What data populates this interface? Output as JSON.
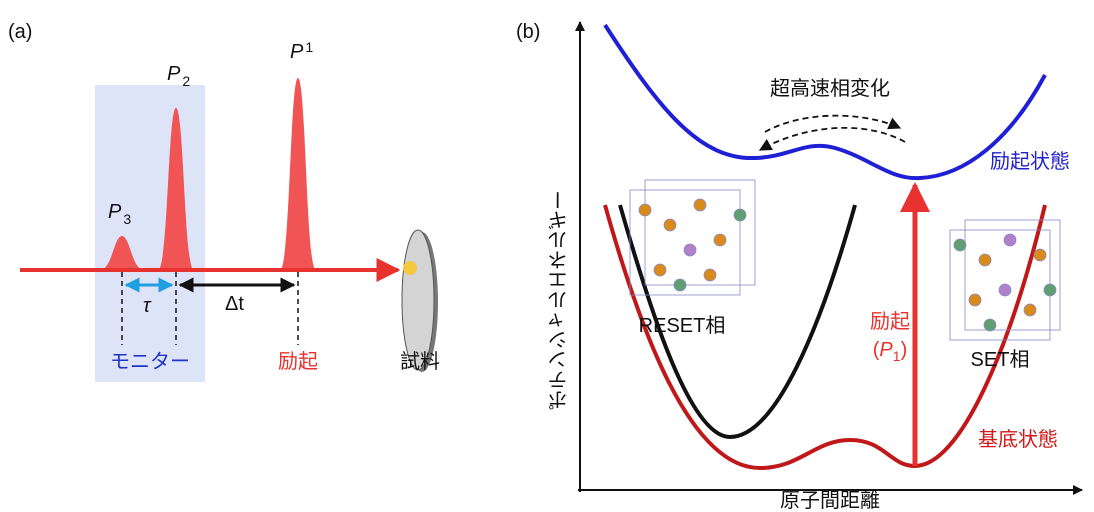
{
  "panel_a": {
    "label": "(a)",
    "pulses": [
      {
        "symbol": "P",
        "subscript": "1"
      },
      {
        "symbol": "P",
        "subscript": "2"
      },
      {
        "symbol": "P",
        "subscript": "3"
      }
    ],
    "tau": "τ",
    "delta_t": "Δt",
    "monitor": "モニター",
    "excitation": "励起",
    "sample": "試料"
  },
  "panel_b": {
    "label": "(b)",
    "transition": "超高速相変化",
    "excited_state": "励起状態",
    "reset_phase": "RESET相",
    "set_phase": "SET相",
    "excitation": "励起",
    "excitation_pulse": {
      "open": "(",
      "symbol": "P",
      "subscript": "1",
      "close": ")"
    },
    "ground_state": "基底状態",
    "y_axis": "ポテンシャルエネルギー",
    "x_axis": "原子間距離"
  }
}
